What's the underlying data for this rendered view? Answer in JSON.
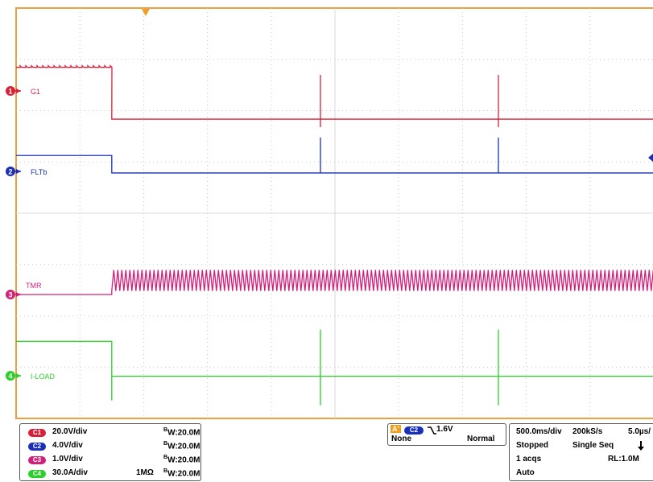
{
  "chart_data": {
    "type": "line",
    "title": "",
    "grid": true,
    "divisions": {
      "x": 10,
      "y": 8
    },
    "trigger_marker": {
      "x_div": 1.5,
      "color": "#f0a020"
    },
    "channels": [
      {
        "id": "C1",
        "number": "1",
        "label": "G1",
        "color": "#d8203a",
        "scale": "20.0V/div",
        "coupling": "",
        "bandwidth": "20.0M",
        "levels": {
          "before": 0.46,
          "after": -0.55
        }
      },
      {
        "id": "C2",
        "number": "2",
        "label": "FLTb",
        "color": "#1a2fb8",
        "scale": "4.0V/div",
        "coupling": "",
        "bandwidth": "20.0M",
        "levels": {
          "before": 0.31,
          "after": -0.03
        }
      },
      {
        "id": "C3",
        "number": "3",
        "label": "TMR",
        "color": "#d0207a",
        "scale": "1.0V/div",
        "coupling": "",
        "bandwidth": "20.0M",
        "levels": {
          "before": 0.0,
          "after_low": 0.07,
          "after_high": 0.48
        }
      },
      {
        "id": "C4",
        "number": "4",
        "label": "I-LOAD",
        "color": "#2ad02a",
        "scale": "30.0A/div",
        "coupling": "1MΩ",
        "bandwidth": "20.0M",
        "levels": {
          "before": 0.67,
          "after": -0.01
        }
      }
    ]
  },
  "trigger": {
    "badge": "A'",
    "channel": "C2",
    "slope_icon": "falling-edge",
    "level": "1.6V",
    "coupling": "None",
    "mode": "Normal"
  },
  "acquisition": {
    "timebase": "500.0ms/div",
    "sample_rate": "200kS/s",
    "resolution": "5.0µs/",
    "state": "Stopped",
    "mode": "Single Seq",
    "acqs": "1 acqs",
    "record_length": "RL:1.0M",
    "auto": "Auto"
  },
  "bw_prefix": "B",
  "bw_sub": "W"
}
